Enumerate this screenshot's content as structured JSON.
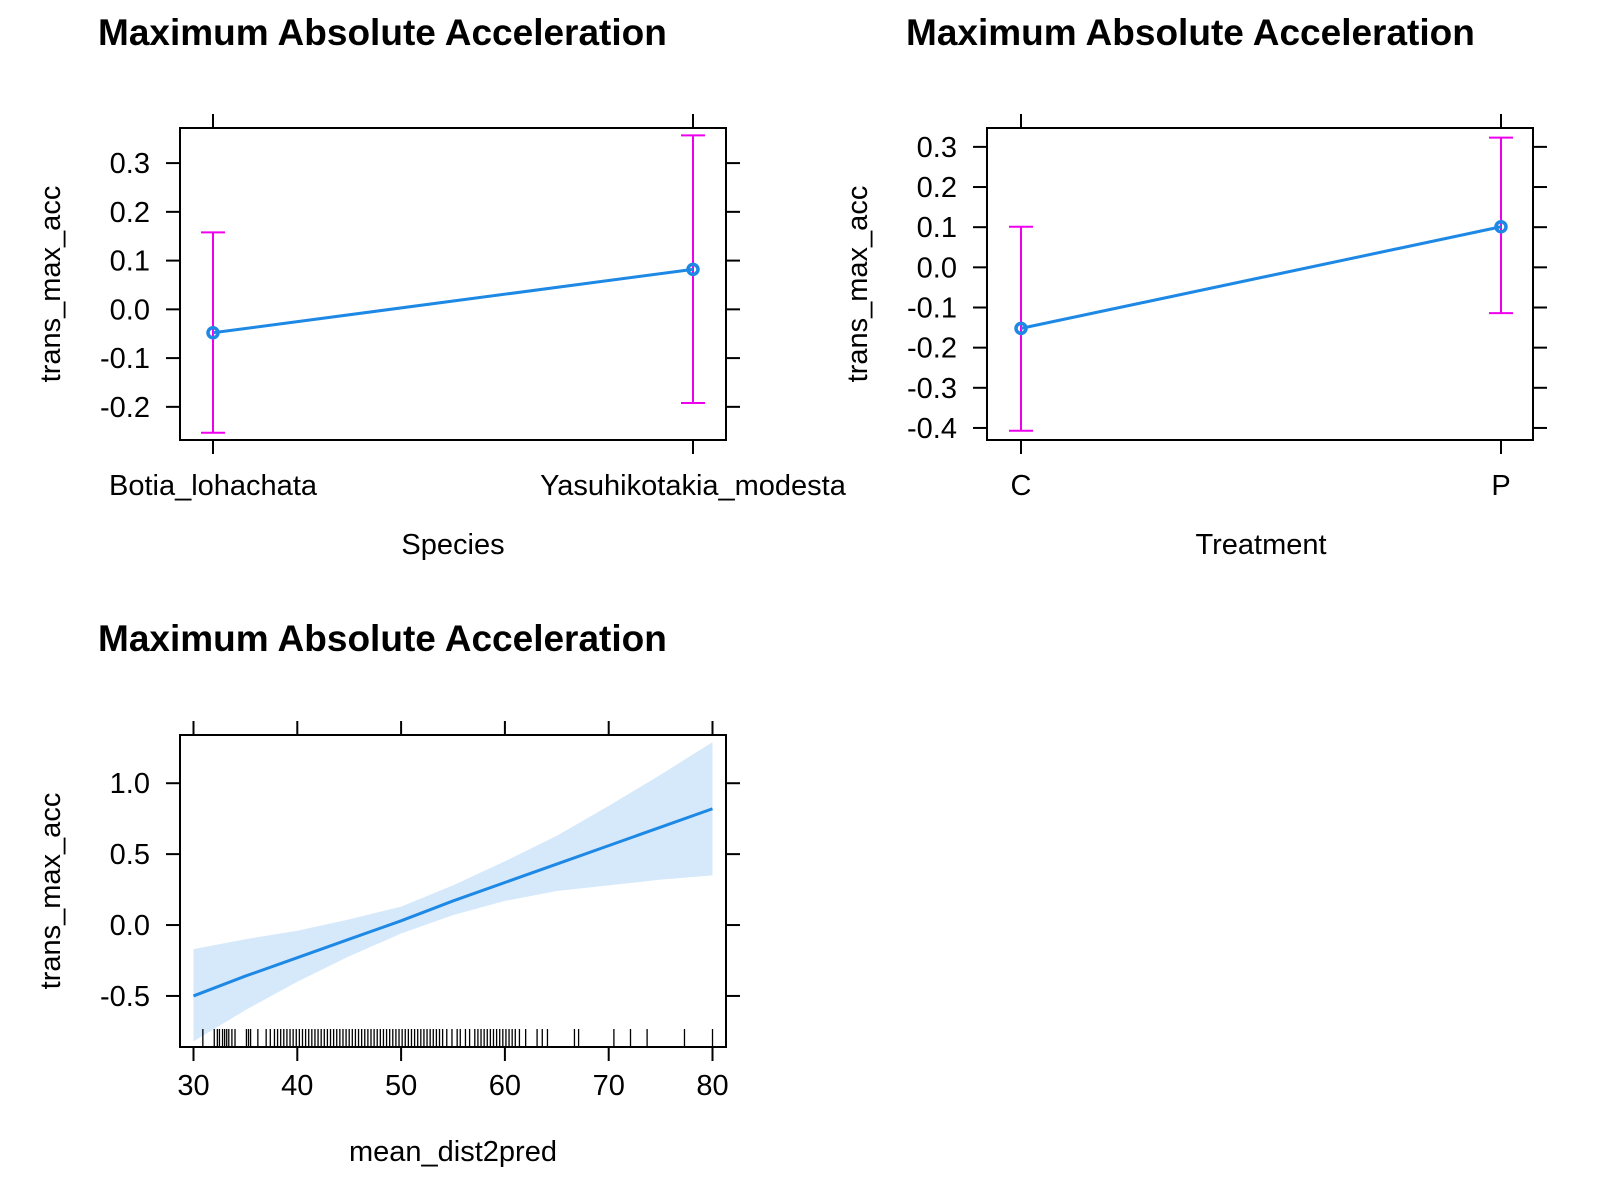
{
  "chart_data": [
    {
      "type": "line",
      "title": "Maximum Absolute Acceleration",
      "xlabel": "Species",
      "ylabel": "trans_max_acc",
      "categories": [
        "Botia_lohachata",
        "Yasuhikotakia_modesta"
      ],
      "values": [
        -0.048,
        0.082
      ],
      "lower": [
        -0.253,
        -0.192
      ],
      "upper": [
        0.158,
        0.357
      ],
      "ylim": [
        -0.268,
        0.372
      ],
      "yticks": [
        -0.2,
        -0.1,
        0.0,
        0.1,
        0.2,
        0.3
      ],
      "ytick_labels": [
        "-0.2",
        "-0.1",
        "0.0",
        "0.1",
        "0.2",
        "0.3"
      ],
      "grid": false,
      "colors": {
        "line": "#1e88e5",
        "error_bars": "#ee00ee"
      }
    },
    {
      "type": "line",
      "title": "Maximum Absolute Acceleration",
      "xlabel": "Treatment",
      "ylabel": "trans_max_acc",
      "categories": [
        "C",
        "P"
      ],
      "values": [
        -0.152,
        0.101
      ],
      "lower": [
        -0.407,
        -0.114
      ],
      "upper": [
        0.101,
        0.323
      ],
      "ylim": [
        -0.43,
        0.347
      ],
      "yticks": [
        -0.4,
        -0.3,
        -0.2,
        -0.1,
        0.0,
        0.1,
        0.2,
        0.3
      ],
      "ytick_labels": [
        "-0.4",
        "-0.3",
        "-0.2",
        "-0.1",
        "0.0",
        "0.1",
        "0.2",
        "0.3"
      ],
      "grid": false,
      "colors": {
        "line": "#1e88e5",
        "error_bars": "#ee00ee"
      }
    },
    {
      "type": "line",
      "title": "Maximum Absolute Acceleration",
      "xlabel": "mean_dist2pred",
      "ylabel": "trans_max_acc",
      "x": [
        30,
        35,
        40,
        45,
        50,
        55,
        60,
        65,
        70,
        75,
        80
      ],
      "y": [
        -0.5,
        -0.36,
        -0.23,
        -0.1,
        0.03,
        0.17,
        0.3,
        0.43,
        0.56,
        0.69,
        0.82
      ],
      "lower": [
        -0.82,
        -0.6,
        -0.4,
        -0.22,
        -0.06,
        0.07,
        0.17,
        0.24,
        0.28,
        0.32,
        0.35
      ],
      "upper": [
        -0.17,
        -0.1,
        -0.04,
        0.04,
        0.13,
        0.28,
        0.45,
        0.63,
        0.84,
        1.06,
        1.29
      ],
      "xlim": [
        28.7,
        81.3
      ],
      "ylim": [
        -0.86,
        1.34
      ],
      "xticks": [
        30,
        40,
        50,
        60,
        70,
        80
      ],
      "xtick_labels": [
        "30",
        "40",
        "50",
        "60",
        "70",
        "80"
      ],
      "yticks": [
        -0.5,
        0.0,
        0.5,
        1.0
      ],
      "ytick_labels": [
        "-0.5",
        "0.0",
        "0.5",
        "1.0"
      ],
      "rug": [
        30.9,
        32.0,
        32.3,
        32.5,
        32.8,
        33.0,
        33.2,
        33.4,
        33.7,
        34.0,
        35.1,
        35.3,
        35.5,
        36.2,
        37.0,
        37.4,
        37.8,
        38.1,
        38.4,
        38.7,
        39.0,
        39.3,
        39.6,
        39.9,
        40.2,
        40.5,
        40.8,
        41.1,
        41.4,
        41.7,
        42.0,
        42.3,
        42.6,
        42.9,
        43.2,
        43.5,
        43.8,
        44.1,
        44.4,
        44.7,
        45.0,
        45.3,
        45.6,
        45.9,
        46.2,
        46.5,
        46.8,
        47.1,
        47.4,
        47.7,
        48.0,
        48.3,
        48.6,
        48.9,
        49.2,
        49.5,
        49.8,
        50.1,
        50.4,
        50.7,
        51.0,
        51.3,
        51.6,
        51.9,
        52.2,
        52.5,
        52.8,
        53.1,
        53.4,
        53.7,
        54.0,
        54.4,
        54.9,
        55.4,
        55.7,
        56.2,
        56.6,
        57.1,
        57.4,
        57.7,
        58.0,
        58.3,
        58.6,
        58.9,
        59.2,
        59.5,
        59.8,
        60.1,
        60.4,
        60.7,
        61.0,
        61.4,
        62.0,
        63.1,
        63.6,
        64.1,
        66.7,
        67.1,
        70.5,
        72.1,
        73.7,
        77.3,
        80.0
      ],
      "grid": false,
      "colors": {
        "line": "#1e88e5",
        "band": "#d6e9fb"
      }
    }
  ]
}
